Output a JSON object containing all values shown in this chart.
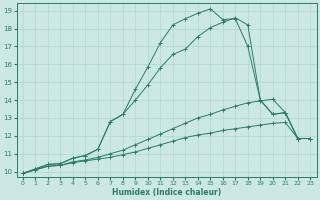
{
  "xlabel": "Humidex (Indice chaleur)",
  "bg_color": "#cbe8e3",
  "line_color": "#2d7a6a",
  "grid_color": "#b0d8d0",
  "xlim": [
    -0.5,
    23.5
  ],
  "ylim": [
    9.7,
    19.4
  ],
  "xticks": [
    0,
    1,
    2,
    3,
    4,
    5,
    6,
    7,
    8,
    9,
    10,
    11,
    12,
    13,
    14,
    15,
    16,
    17,
    18,
    19,
    20,
    21,
    22,
    23
  ],
  "yticks": [
    10,
    11,
    12,
    13,
    14,
    15,
    16,
    17,
    18,
    19
  ],
  "series": [
    {
      "x": [
        0,
        1,
        2,
        3,
        4,
        5,
        6,
        7,
        8,
        9,
        10,
        11,
        12,
        13,
        14,
        15,
        16,
        17,
        18,
        19,
        20,
        21,
        22,
        23
      ],
      "y": [
        9.9,
        10.1,
        10.3,
        10.35,
        10.5,
        10.6,
        10.7,
        10.8,
        10.95,
        11.1,
        11.3,
        11.5,
        11.7,
        11.9,
        12.05,
        12.15,
        12.3,
        12.4,
        12.5,
        12.6,
        12.7,
        12.75,
        11.85,
        11.85
      ]
    },
    {
      "x": [
        0,
        1,
        2,
        3,
        4,
        5,
        6,
        7,
        8,
        9,
        10,
        11,
        12,
        13,
        14,
        15,
        16,
        17,
        18,
        19,
        20,
        21,
        22,
        23
      ],
      "y": [
        9.9,
        10.1,
        10.3,
        10.35,
        10.55,
        10.65,
        10.8,
        11.0,
        11.2,
        11.5,
        11.8,
        12.1,
        12.4,
        12.7,
        13.0,
        13.2,
        13.45,
        13.65,
        13.85,
        13.95,
        14.05,
        13.3,
        11.85,
        11.85
      ]
    },
    {
      "x": [
        0,
        1,
        2,
        3,
        4,
        5,
        6,
        7,
        8,
        9,
        10,
        11,
        12,
        13,
        14,
        15,
        16,
        17,
        18,
        19,
        20,
        21,
        22,
        23
      ],
      "y": [
        9.9,
        10.15,
        10.4,
        10.45,
        10.75,
        10.9,
        11.25,
        12.8,
        13.2,
        14.0,
        14.85,
        15.8,
        16.55,
        16.85,
        17.55,
        18.05,
        18.35,
        18.6,
        18.2,
        14.0,
        13.2,
        13.3,
        11.85,
        11.85
      ]
    },
    {
      "x": [
        0,
        1,
        2,
        3,
        4,
        5,
        6,
        7,
        8,
        9,
        10,
        11,
        12,
        13,
        14,
        15,
        16,
        17,
        18,
        19,
        20,
        21,
        22,
        23
      ],
      "y": [
        9.9,
        10.15,
        10.4,
        10.45,
        10.75,
        10.9,
        11.25,
        12.8,
        13.2,
        14.6,
        15.85,
        17.2,
        18.2,
        18.55,
        18.85,
        19.1,
        18.5,
        18.55,
        17.0,
        14.0,
        13.2,
        13.3,
        11.85,
        11.85
      ]
    }
  ]
}
